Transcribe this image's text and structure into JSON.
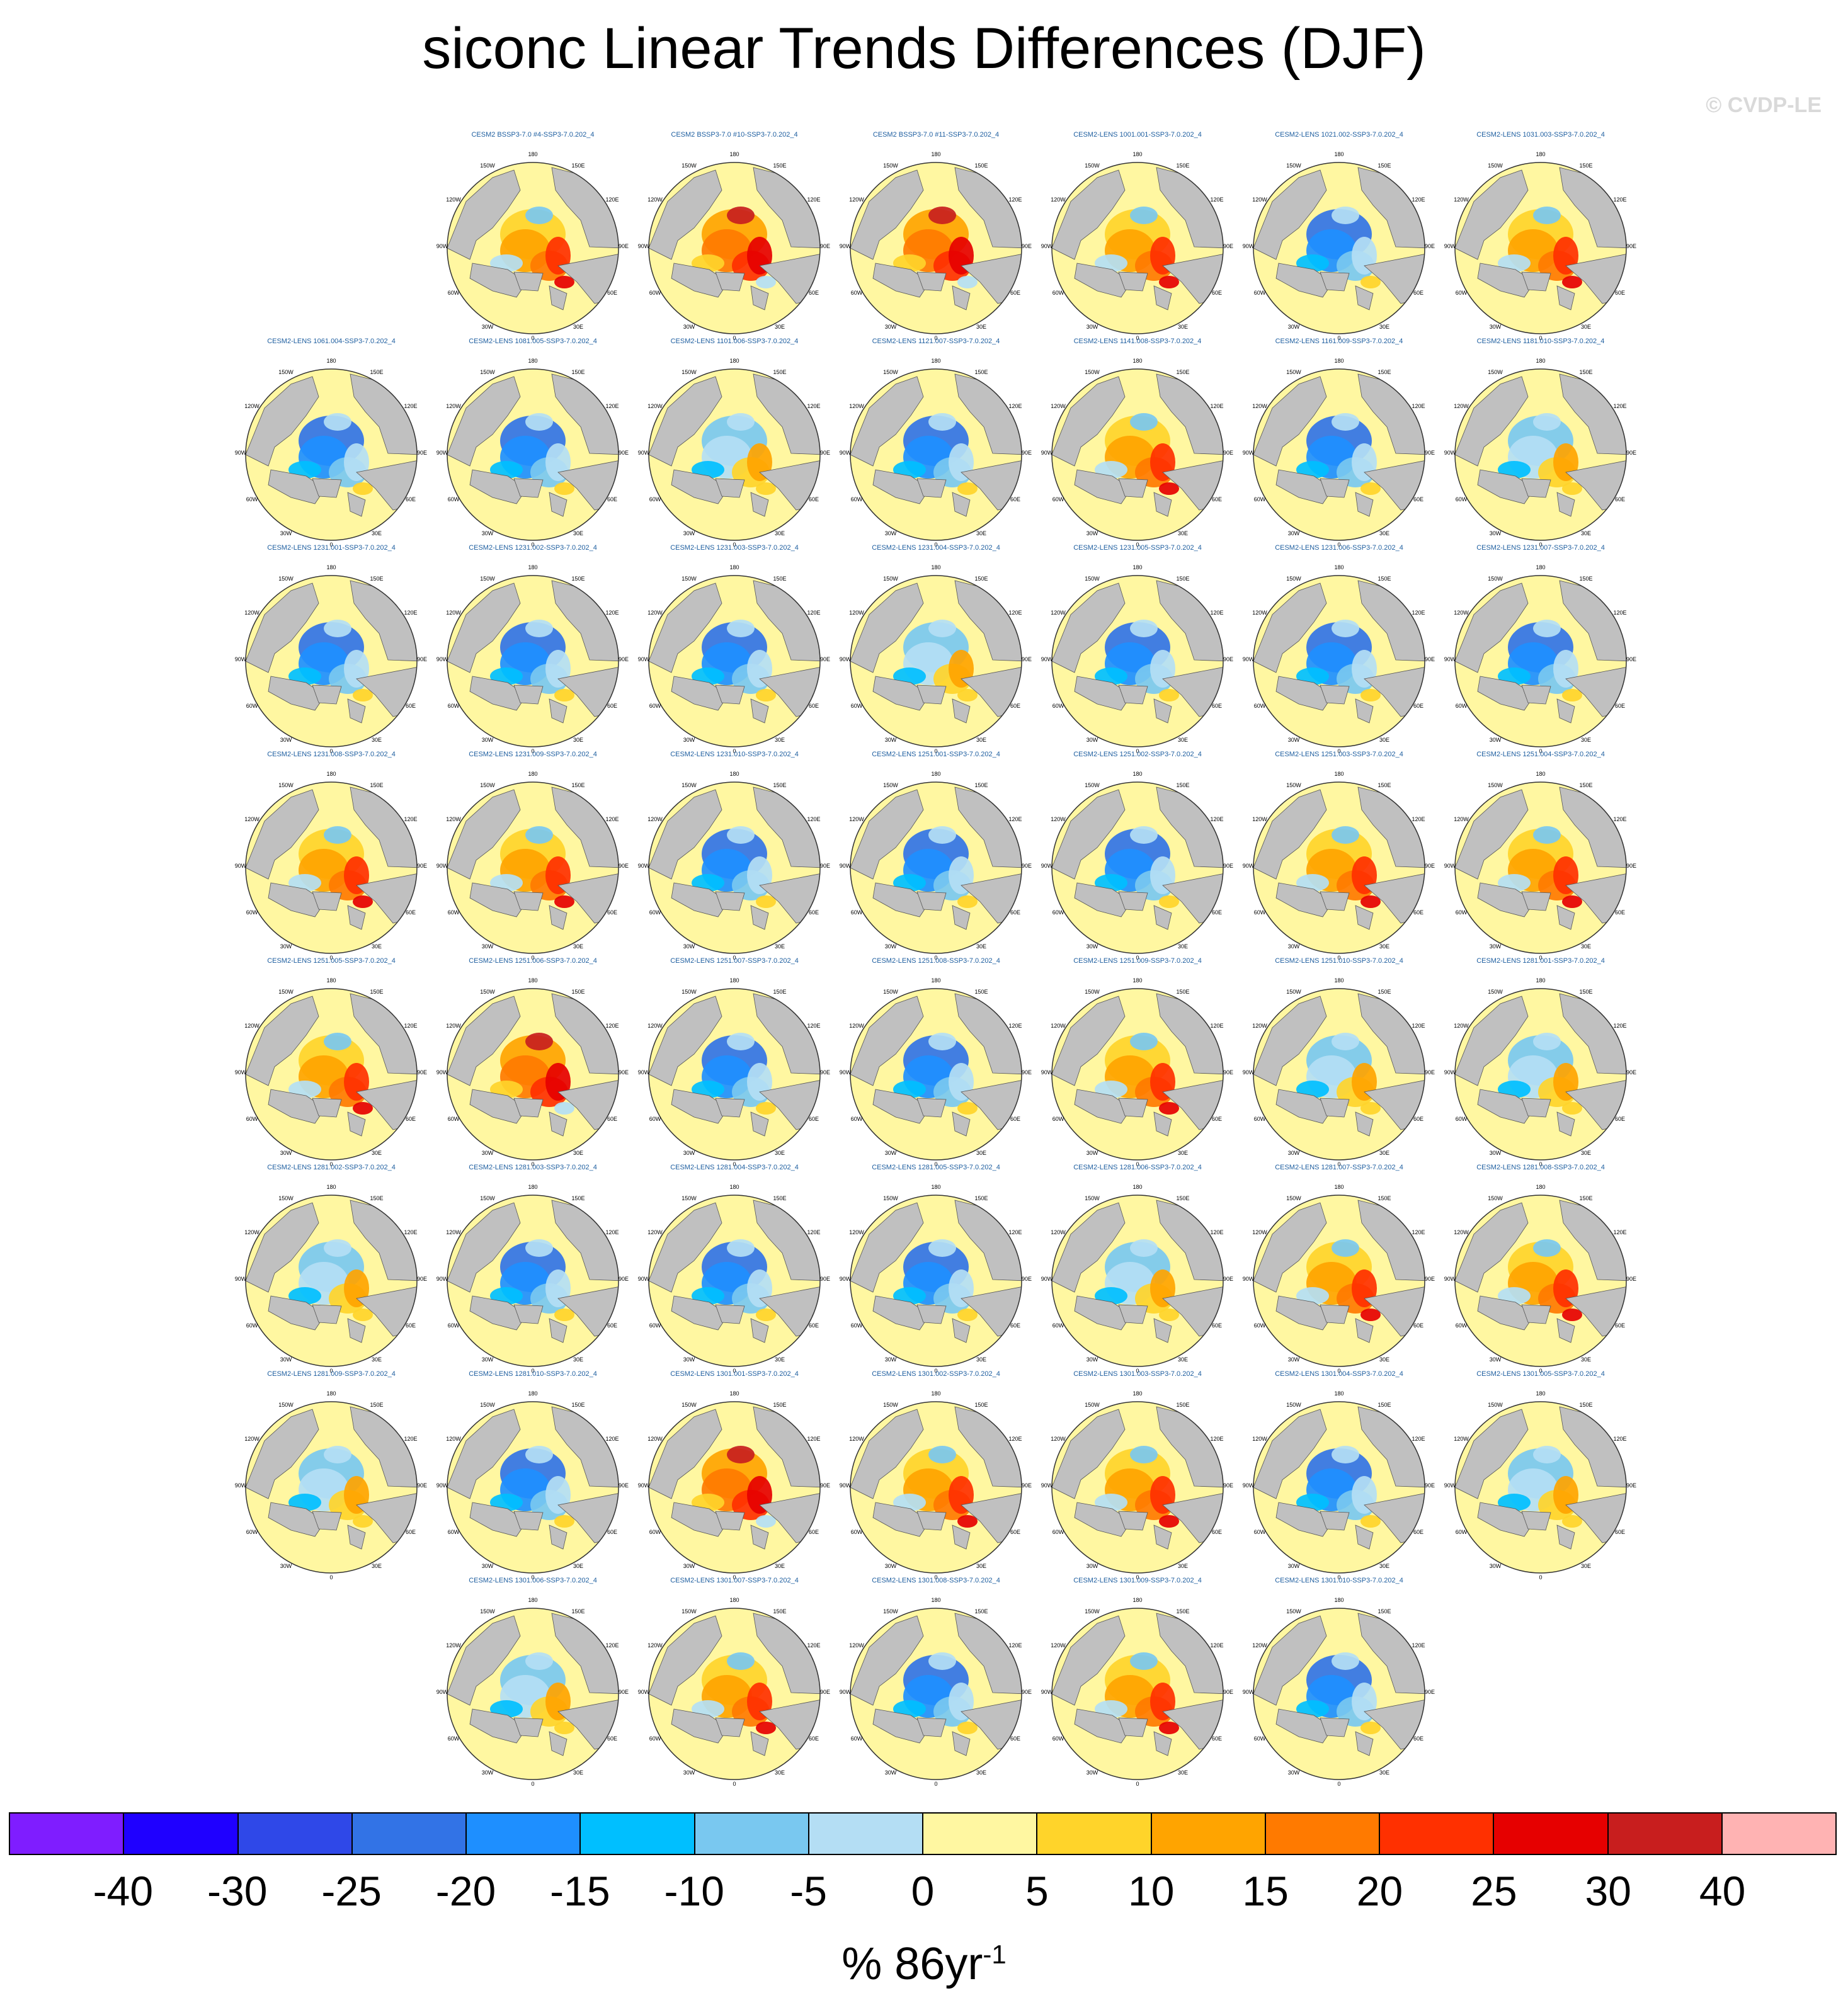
{
  "title": "siconc Linear Trends Differences (DJF)",
  "watermark": "© CVDP-LE",
  "map_labels": {
    "lon_0": "0",
    "lon_30e": "30E",
    "lon_60e": "60E",
    "lon_90e": "90E",
    "lon_120e": "120E",
    "lon_150e": "150E",
    "lon_180": "180",
    "lon_150w": "150W",
    "lon_120w": "120W",
    "lon_90w": "90W",
    "lon_60w": "60W",
    "lon_30w": "30W"
  },
  "panels": [
    {
      "row": 0,
      "col": 1,
      "label": "CESM2 BSSP3-7.0 #4-SSP3-7.0.202_4",
      "tone": "mixed-warm"
    },
    {
      "row": 0,
      "col": 2,
      "label": "CESM2 BSSP3-7.0 #10-SSP3-7.0.202_4",
      "tone": "warm"
    },
    {
      "row": 0,
      "col": 3,
      "label": "CESM2 BSSP3-7.0 #11-SSP3-7.0.202_4",
      "tone": "warm"
    },
    {
      "row": 0,
      "col": 4,
      "label": "CESM2-LENS 1001.001-SSP3-7.0.202_4",
      "tone": "mixed-warm"
    },
    {
      "row": 0,
      "col": 5,
      "label": "CESM2-LENS 1021.002-SSP3-7.0.202_4",
      "tone": "cool"
    },
    {
      "row": 0,
      "col": 6,
      "label": "CESM2-LENS 1031.003-SSP3-7.0.202_4",
      "tone": "mixed-warm"
    },
    {
      "row": 1,
      "col": 0,
      "label": "CESM2-LENS 1061.004-SSP3-7.0.202_4",
      "tone": "cool"
    },
    {
      "row": 1,
      "col": 1,
      "label": "CESM2-LENS 1081.005-SSP3-7.0.202_4",
      "tone": "cool"
    },
    {
      "row": 1,
      "col": 2,
      "label": "CESM2-LENS 1101.006-SSP3-7.0.202_4",
      "tone": "mixed"
    },
    {
      "row": 1,
      "col": 3,
      "label": "CESM2-LENS 1121.007-SSP3-7.0.202_4",
      "tone": "cool"
    },
    {
      "row": 1,
      "col": 4,
      "label": "CESM2-LENS 1141.008-SSP3-7.0.202_4",
      "tone": "mixed-warm"
    },
    {
      "row": 1,
      "col": 5,
      "label": "CESM2-LENS 1161.009-SSP3-7.0.202_4",
      "tone": "cool"
    },
    {
      "row": 1,
      "col": 6,
      "label": "CESM2-LENS 1181.010-SSP3-7.0.202_4",
      "tone": "mixed"
    },
    {
      "row": 2,
      "col": 0,
      "label": "CESM2-LENS 1231.001-SSP3-7.0.202_4",
      "tone": "cool"
    },
    {
      "row": 2,
      "col": 1,
      "label": "CESM2-LENS 1231.002-SSP3-7.0.202_4",
      "tone": "cool"
    },
    {
      "row": 2,
      "col": 2,
      "label": "CESM2-LENS 1231.003-SSP3-7.0.202_4",
      "tone": "cool"
    },
    {
      "row": 2,
      "col": 3,
      "label": "CESM2-LENS 1231.004-SSP3-7.0.202_4",
      "tone": "mixed"
    },
    {
      "row": 2,
      "col": 4,
      "label": "CESM2-LENS 1231.005-SSP3-7.0.202_4",
      "tone": "cool"
    },
    {
      "row": 2,
      "col": 5,
      "label": "CESM2-LENS 1231.006-SSP3-7.0.202_4",
      "tone": "cool"
    },
    {
      "row": 2,
      "col": 6,
      "label": "CESM2-LENS 1231.007-SSP3-7.0.202_4",
      "tone": "cool"
    },
    {
      "row": 3,
      "col": 0,
      "label": "CESM2-LENS 1231.008-SSP3-7.0.202_4",
      "tone": "mixed-warm"
    },
    {
      "row": 3,
      "col": 1,
      "label": "CESM2-LENS 1231.009-SSP3-7.0.202_4",
      "tone": "mixed-warm"
    },
    {
      "row": 3,
      "col": 2,
      "label": "CESM2-LENS 1231.010-SSP3-7.0.202_4",
      "tone": "cool"
    },
    {
      "row": 3,
      "col": 3,
      "label": "CESM2-LENS 1251.001-SSP3-7.0.202_4",
      "tone": "cool"
    },
    {
      "row": 3,
      "col": 4,
      "label": "CESM2-LENS 1251.002-SSP3-7.0.202_4",
      "tone": "cool"
    },
    {
      "row": 3,
      "col": 5,
      "label": "CESM2-LENS 1251.003-SSP3-7.0.202_4",
      "tone": "mixed-warm"
    },
    {
      "row": 3,
      "col": 6,
      "label": "CESM2-LENS 1251.004-SSP3-7.0.202_4",
      "tone": "mixed-warm"
    },
    {
      "row": 4,
      "col": 0,
      "label": "CESM2-LENS 1251.005-SSP3-7.0.202_4",
      "tone": "mixed-warm"
    },
    {
      "row": 4,
      "col": 1,
      "label": "CESM2-LENS 1251.006-SSP3-7.0.202_4",
      "tone": "warm"
    },
    {
      "row": 4,
      "col": 2,
      "label": "CESM2-LENS 1251.007-SSP3-7.0.202_4",
      "tone": "cool"
    },
    {
      "row": 4,
      "col": 3,
      "label": "CESM2-LENS 1251.008-SSP3-7.0.202_4",
      "tone": "cool"
    },
    {
      "row": 4,
      "col": 4,
      "label": "CESM2-LENS 1251.009-SSP3-7.0.202_4",
      "tone": "mixed-warm"
    },
    {
      "row": 4,
      "col": 5,
      "label": "CESM2-LENS 1251.010-SSP3-7.0.202_4",
      "tone": "mixed"
    },
    {
      "row": 4,
      "col": 6,
      "label": "CESM2-LENS 1281.001-SSP3-7.0.202_4",
      "tone": "mixed"
    },
    {
      "row": 5,
      "col": 0,
      "label": "CESM2-LENS 1281.002-SSP3-7.0.202_4",
      "tone": "mixed"
    },
    {
      "row": 5,
      "col": 1,
      "label": "CESM2-LENS 1281.003-SSP3-7.0.202_4",
      "tone": "cool"
    },
    {
      "row": 5,
      "col": 2,
      "label": "CESM2-LENS 1281.004-SSP3-7.0.202_4",
      "tone": "cool"
    },
    {
      "row": 5,
      "col": 3,
      "label": "CESM2-LENS 1281.005-SSP3-7.0.202_4",
      "tone": "cool"
    },
    {
      "row": 5,
      "col": 4,
      "label": "CESM2-LENS 1281.006-SSP3-7.0.202_4",
      "tone": "mixed"
    },
    {
      "row": 5,
      "col": 5,
      "label": "CESM2-LENS 1281.007-SSP3-7.0.202_4",
      "tone": "mixed-warm"
    },
    {
      "row": 5,
      "col": 6,
      "label": "CESM2-LENS 1281.008-SSP3-7.0.202_4",
      "tone": "mixed-warm"
    },
    {
      "row": 6,
      "col": 0,
      "label": "CESM2-LENS 1281.009-SSP3-7.0.202_4",
      "tone": "mixed"
    },
    {
      "row": 6,
      "col": 1,
      "label": "CESM2-LENS 1281.010-SSP3-7.0.202_4",
      "tone": "cool"
    },
    {
      "row": 6,
      "col": 2,
      "label": "CESM2-LENS 1301.001-SSP3-7.0.202_4",
      "tone": "warm"
    },
    {
      "row": 6,
      "col": 3,
      "label": "CESM2-LENS 1301.002-SSP3-7.0.202_4",
      "tone": "mixed-warm"
    },
    {
      "row": 6,
      "col": 4,
      "label": "CESM2-LENS 1301.003-SSP3-7.0.202_4",
      "tone": "mixed-warm"
    },
    {
      "row": 6,
      "col": 5,
      "label": "CESM2-LENS 1301.004-SSP3-7.0.202_4",
      "tone": "cool"
    },
    {
      "row": 6,
      "col": 6,
      "label": "CESM2-LENS 1301.005-SSP3-7.0.202_4",
      "tone": "mixed"
    },
    {
      "row": 7,
      "col": 1,
      "label": "CESM2-LENS 1301.006-SSP3-7.0.202_4",
      "tone": "mixed"
    },
    {
      "row": 7,
      "col": 2,
      "label": "CESM2-LENS 1301.007-SSP3-7.0.202_4",
      "tone": "mixed-warm"
    },
    {
      "row": 7,
      "col": 3,
      "label": "CESM2-LENS 1301.008-SSP3-7.0.202_4",
      "tone": "cool"
    },
    {
      "row": 7,
      "col": 4,
      "label": "CESM2-LENS 1301.009-SSP3-7.0.202_4",
      "tone": "mixed-warm"
    },
    {
      "row": 7,
      "col": 5,
      "label": "CESM2-LENS 1301.010-SSP3-7.0.202_4",
      "tone": "cool"
    }
  ],
  "colorbar": {
    "colors": [
      "#7f1dff",
      "#1f00ff",
      "#2f48e8",
      "#3273e6",
      "#1e8fff",
      "#00bfff",
      "#79c8f0",
      "#b4def4",
      "#fff7a1",
      "#ffd42a",
      "#ffa400",
      "#ff7a00",
      "#ff3000",
      "#e60000",
      "#c81e1e",
      "#ffb3b3"
    ],
    "ticks": [
      "-40",
      "-30",
      "-25",
      "-20",
      "-15",
      "-10",
      "-5",
      "0",
      "5",
      "10",
      "15",
      "20",
      "25",
      "30",
      "40"
    ],
    "units": "% 86yr",
    "units_exponent": "-1"
  },
  "style": {
    "ocean_color": "#fff7a1",
    "land_color": "#c0c0c0",
    "label_color": "#1f5fa0"
  }
}
